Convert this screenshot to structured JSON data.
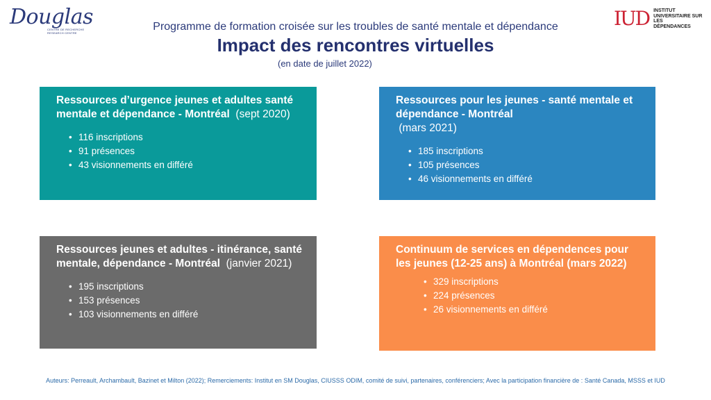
{
  "logos": {
    "douglas": {
      "name": "Douglas",
      "sub1": "CENTRE DE RECHERCHE",
      "sub2": "RESEARCH CENTRE"
    },
    "iud": {
      "mark": "IUD",
      "line1": "INSTITUT",
      "line2": "UNIVERSITAIRE SUR LES",
      "line3": "DÉPENDANCES",
      "color": "#cc2233"
    }
  },
  "header": {
    "supertitle": "Programme de formation croisée sur les troubles de santé mentale et dépendance",
    "title": "Impact des rencontres virtuelles",
    "subtitle": "(en date de juillet 2022)"
  },
  "cards": [
    {
      "title_bold": "Ressources d’urgence jeunes et adultes santé mentale et dépendance - Montréal",
      "date": "(sept 2020)",
      "items": [
        "116 inscriptions",
        "91 présences",
        "43 visionnements en différé"
      ],
      "color": "#0a9a9a"
    },
    {
      "title_bold": "Ressources pour les jeunes - santé mentale et dépendance - Montréal",
      "date": "(mars 2021)",
      "items": [
        "185 inscriptions",
        "105 présences",
        "46 visionnements en différé"
      ],
      "color": "#2b86c0"
    },
    {
      "title_bold": "Ressources jeunes et adultes - itinérance, santé mentale, dépendance - Montréal",
      "date": "(janvier 2021)",
      "items": [
        "195 inscriptions",
        "153 présences",
        "103 visionnements en différé"
      ],
      "color": "#6b6b6b"
    },
    {
      "title_bold": "Continuum de services en dépendences pour les jeunes (12-25 ans) à Montréal (mars 2022)",
      "date": "",
      "items": [
        "329 inscriptions",
        "224 présences",
        "26 visionnements en différé"
      ],
      "color": "#fa8d4a"
    }
  ],
  "footer": "Auteurs: Perreault, Archambault, Bazinet et Milton (2022); Remerciements: Institut en SM Douglas, CIUSSS ODIM,  comité de suivi, partenaires, conférenciers; Avec la participation financière de : Santé Canada, MSSS et IUD"
}
